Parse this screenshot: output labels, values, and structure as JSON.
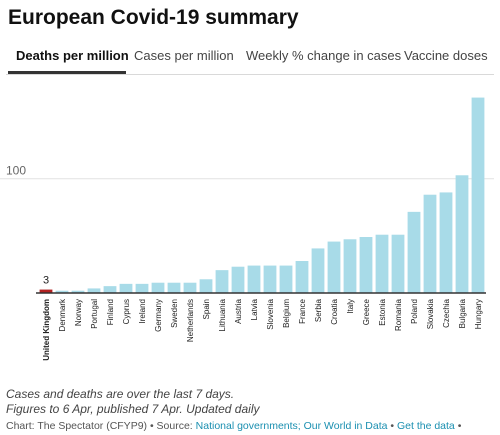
{
  "title": "European Covid-19 summary",
  "tabs": [
    {
      "label": "Deaths per million",
      "active": true
    },
    {
      "label": "Cases per million",
      "active": false
    },
    {
      "label": "Weekly % change in cases",
      "active": false
    },
    {
      "label": "Vaccine doses",
      "active": false
    }
  ],
  "chart_data": {
    "type": "bar",
    "title": "",
    "xlabel": "",
    "ylabel": "",
    "ylim": [
      0,
      175
    ],
    "yticks": [
      100
    ],
    "ytick_labels": [
      "100"
    ],
    "highlight_category": "United Kingdom",
    "highlight_label": "3",
    "colors": {
      "default": "#a8dbe8",
      "highlight": "#b22222"
    },
    "categories": [
      "United Kingdom",
      "Denmark",
      "Norway",
      "Portugal",
      "Finland",
      "Cyprus",
      "Ireland",
      "Germany",
      "Sweden",
      "Netherlands",
      "Spain",
      "Lithuania",
      "Austria",
      "Latvia",
      "Slovenia",
      "Belgium",
      "France",
      "Serbia",
      "Croatia",
      "Italy",
      "Greece",
      "Estonia",
      "Romania",
      "Poland",
      "Slovakia",
      "Czechia",
      "Bulgaria",
      "Hungary"
    ],
    "values": [
      3,
      2,
      2,
      4,
      6,
      8,
      8,
      9,
      9,
      9,
      12,
      20,
      23,
      24,
      24,
      24,
      28,
      39,
      45,
      47,
      49,
      51,
      51,
      71,
      86,
      88,
      103,
      171
    ]
  },
  "notes": [
    "Cases and deaths are over the last 7 days.",
    "Figures to 6 Apr, published 7 Apr. Updated daily"
  ],
  "source": {
    "prefix": "Chart: The Spectator (CFYP9) • Source: ",
    "link1": "National governments; Our World in Data",
    "sep": " • ",
    "link2": "Get the data",
    "suffix": " •"
  }
}
